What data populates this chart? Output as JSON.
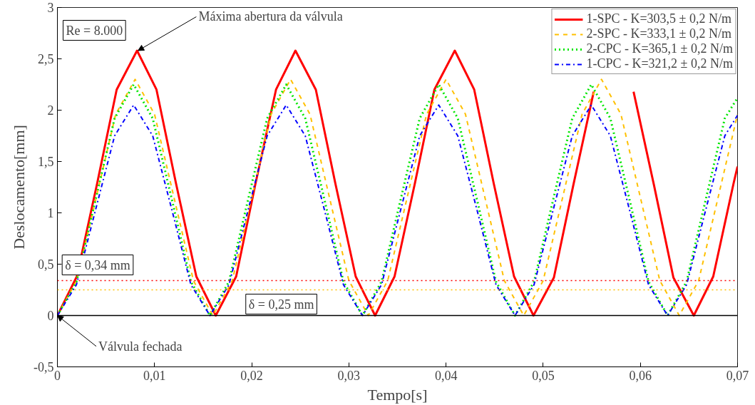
{
  "chart_data": {
    "type": "line",
    "xlabel": "Tempo[s]",
    "ylabel": "Deslocamento[mm]",
    "xlim": [
      0,
      0.07
    ],
    "ylim": [
      -0.5,
      3
    ],
    "xticks": [
      0,
      {
        "value": 0.01,
        "label": "0,01"
      },
      {
        "value": 0.02,
        "label": "0,02"
      },
      {
        "value": 0.03,
        "label": "0,03"
      },
      {
        "value": 0.04,
        "label": "0,04"
      },
      {
        "value": 0.05,
        "label": "0,05"
      },
      {
        "value": 0.06,
        "label": "0,06"
      },
      {
        "value": 0.07,
        "label": "0,07"
      }
    ],
    "yticks": [
      {
        "value": -0.5,
        "label": "-0,5"
      },
      0,
      {
        "value": 0.5,
        "label": "0,5"
      },
      1,
      {
        "value": 1.5,
        "label": "1,5"
      },
      2,
      {
        "value": 2.5,
        "label": "2,5"
      },
      3
    ],
    "grid": false,
    "legend": "top right",
    "marker": "none",
    "series": [
      {
        "name": "1-SPC - K=303,5 ± 0,2 N/m",
        "color": "#ff0000",
        "line_style": "solid",
        "x": [
          0,
          0.002,
          0.0041,
          0.0061,
          0.0082,
          0.0102,
          0.0122,
          0.0143,
          0.0163,
          0.0184,
          0.0204,
          0.0225,
          0.0245,
          0.0266,
          0.0286,
          0.0307,
          0.0327,
          0.0347,
          0.0368,
          0.0388,
          0.0409,
          0.0429,
          0.0449,
          0.047,
          0.049,
          0.0511,
          0.0531,
          0.0552,
          0.0572,
          0.0593,
          0.0614,
          0.0634,
          0.0655,
          0.0675,
          0.0696,
          0.07
        ],
        "values": [
          0,
          0.38,
          1.29,
          2.2,
          2.58,
          2.2,
          1.29,
          0.38,
          0,
          0.38,
          1.29,
          2.2,
          2.58,
          2.2,
          1.29,
          0.38,
          0,
          0.38,
          1.29,
          2.2,
          2.58,
          2.2,
          1.29,
          0.38,
          0,
          0.37,
          1.27,
          2.18,
          null,
          2.18,
          1.27,
          0.37,
          0,
          0.38,
          1.29,
          1.45
        ]
      },
      {
        "name": "2-SPC - K=333,1 ± 0,2 N/m",
        "color": "#ffc000",
        "line_style": "dashed",
        "x": [
          0,
          0.002,
          0.004,
          0.006,
          0.008,
          0.01,
          0.012,
          0.014,
          0.016,
          0.018,
          0.02,
          0.022,
          0.024,
          0.026,
          0.028,
          0.03,
          0.032,
          0.034,
          0.036,
          0.038,
          0.04,
          0.042,
          0.044,
          0.046,
          0.048,
          0.05,
          0.052,
          0.054,
          0.056,
          0.058,
          0.06,
          0.062,
          0.064,
          0.066,
          0.068,
          0.07
        ],
        "values": [
          0,
          0.34,
          1.15,
          1.96,
          2.3,
          1.96,
          1.15,
          0.34,
          0,
          0.34,
          1.15,
          1.96,
          2.3,
          1.96,
          1.15,
          0.34,
          0,
          0.34,
          1.15,
          1.96,
          2.3,
          1.96,
          1.15,
          0.34,
          0,
          0.34,
          1.15,
          1.96,
          2.3,
          1.96,
          1.15,
          0.34,
          0,
          0.34,
          1.15,
          1.96
        ]
      },
      {
        "name": "2-CPC - K=365,1 ± 0,2 N/m",
        "color": "#00e600",
        "line_style": "dotted",
        "x": [
          0,
          0.00196,
          0.00393,
          0.00589,
          0.00785,
          0.00981,
          0.01178,
          0.01374,
          0.0157,
          0.01766,
          0.01963,
          0.02159,
          0.02355,
          0.02551,
          0.02748,
          0.02944,
          0.0314,
          0.03336,
          0.03533,
          0.03729,
          0.03925,
          0.04121,
          0.04318,
          0.04514,
          0.0471,
          0.04906,
          0.05103,
          0.05299,
          0.05495,
          0.05691,
          0.05888,
          0.06084,
          0.0628,
          0.06476,
          0.06673,
          0.06869,
          0.07
        ],
        "values": [
          0,
          0.33,
          1.13,
          1.92,
          2.25,
          1.92,
          1.13,
          0.33,
          0,
          0.33,
          1.13,
          1.92,
          2.25,
          1.92,
          1.13,
          0.33,
          0,
          0.33,
          1.13,
          1.92,
          2.25,
          1.92,
          1.13,
          0.33,
          0,
          0.33,
          1.13,
          1.92,
          2.25,
          1.92,
          1.13,
          0.33,
          0,
          0.33,
          1.13,
          1.92,
          2.12
        ]
      },
      {
        "name": "1-CPC - K=321,2 ± 0,2 N/m",
        "color": "#0000ff",
        "line_style": "dashdot",
        "x": [
          0,
          0.00196,
          0.00393,
          0.00589,
          0.00785,
          0.00981,
          0.01178,
          0.01374,
          0.0157,
          0.01766,
          0.01963,
          0.02159,
          0.02355,
          0.02551,
          0.02748,
          0.02944,
          0.0314,
          0.03336,
          0.03533,
          0.03729,
          0.03925,
          0.04121,
          0.04318,
          0.04514,
          0.0471,
          0.04906,
          0.05103,
          0.05299,
          0.05495,
          0.05691,
          0.05888,
          0.06084,
          0.0628,
          0.06476,
          0.06673,
          0.06869,
          0.07
        ],
        "values": [
          0,
          0.3,
          1.03,
          1.75,
          2.05,
          1.75,
          1.03,
          0.3,
          0,
          0.3,
          1.03,
          1.75,
          2.05,
          1.75,
          1.03,
          0.3,
          0,
          0.3,
          1.03,
          1.75,
          2.05,
          1.75,
          1.03,
          0.3,
          0,
          0.3,
          1.03,
          1.75,
          2.05,
          1.75,
          1.03,
          0.3,
          0,
          0.3,
          1.03,
          1.75,
          1.95
        ]
      }
    ],
    "ref_lines": [
      {
        "axis": "y",
        "value": 0.34,
        "label": "δ = 0,34 mm",
        "color": "#ff0000",
        "line_style": "dotted"
      },
      {
        "axis": "y",
        "value": 0.25,
        "label": "δ = 0,25 mm",
        "color": "#ffc000",
        "line_style": "dotted"
      },
      {
        "axis": "y",
        "value": 0,
        "color": "#000000",
        "line_style": "solid"
      }
    ],
    "annotations": [
      "Re = 8.000",
      {
        "text": "Máxima abertura da válvula",
        "x": 0.0083,
        "y": 2.58
      },
      {
        "text": "Válvula fechada",
        "x": 0,
        "y": 0
      }
    ]
  }
}
